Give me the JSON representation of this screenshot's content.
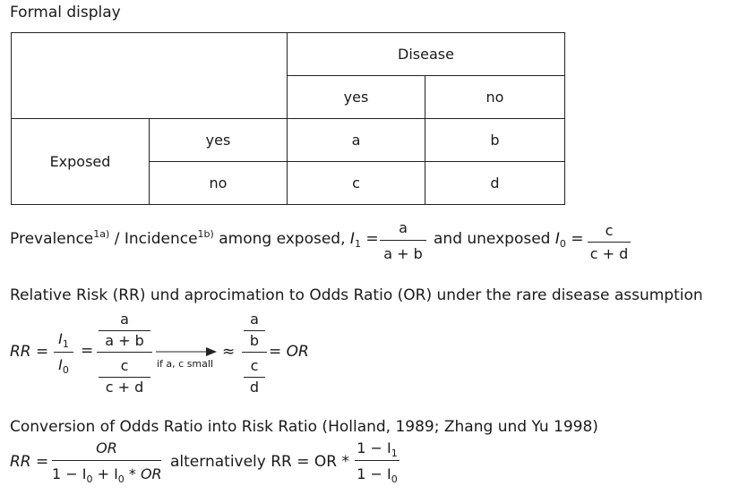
{
  "title": "Formal display",
  "table": {
    "disease_header": "Disease",
    "disease_yes": "yes",
    "disease_no": "no",
    "exposed_label": "Exposed",
    "row_yes": "yes",
    "row_no": "no",
    "cells": {
      "a": "a",
      "b": "b",
      "c": "c",
      "d": "d"
    }
  },
  "prevalence": {
    "word_prevalence": "Prevalence",
    "sup1": "1a)",
    "slash": " / Incidence",
    "sup2": "1b)",
    "among": " among exposed, ",
    "I": "I",
    "one": "1",
    "zero": "0",
    "eq": " =",
    "num1": "a",
    "den1": "a + b",
    "and_unexposed": "and unexposed ",
    "num2": "c",
    "den2": "c + d"
  },
  "rr_section": {
    "heading": "Relative Risk (RR) und aprocimation to Odds Ratio (OR) under the rare disease assumption",
    "rr_eq": "RR =",
    "eq": "=",
    "a": "a",
    "a_plus_b": "a + b",
    "c": "c",
    "c_plus_d": "c + d",
    "arrow_label": "if a, c small",
    "approx": "≈",
    "b": "b",
    "d": "d",
    "eq_or": "= OR"
  },
  "conversion": {
    "heading": "Conversion of Odds Ratio into Risk Ratio (Holland, 1989; Zhang und Yu 1998)",
    "rr_eq": "RR =",
    "num": "OR",
    "den_a": "1 − I",
    "den_b": " + I",
    "den_c": " * OR",
    "alternatively": "alternatively RR = OR *",
    "num2": "1 − I",
    "den2": "1 − I"
  }
}
